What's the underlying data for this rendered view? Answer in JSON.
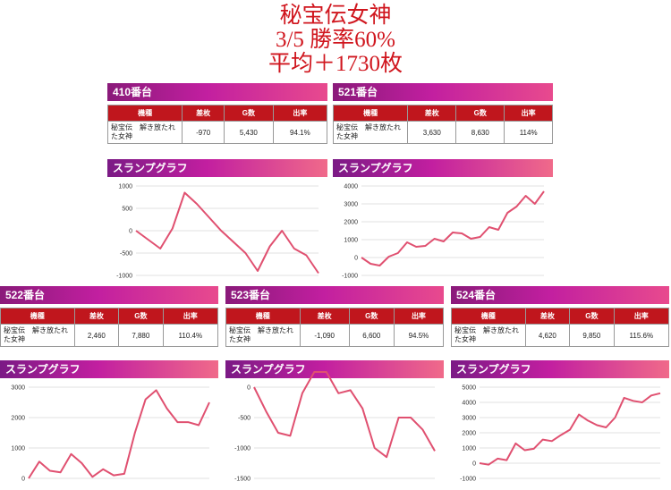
{
  "page": {
    "title_lines": [
      "秘宝伝女神",
      "3/5 勝率60%",
      "平均＋1730枚"
    ]
  },
  "table_headers": [
    "機種",
    "差枚",
    "G数",
    "出率"
  ],
  "graph_label": "スランプグラフ",
  "colors": {
    "header_red": "#c0161d",
    "line": "#e05070",
    "accent": "#d0161e"
  },
  "machines": [
    {
      "label": "410番台",
      "model": "秘宝伝　解き放たれた女神",
      "diff": "-970",
      "games": "5,430",
      "rate": "94.1%"
    },
    {
      "label": "521番台",
      "model": "秘宝伝　解き放たれた女神",
      "diff": "3,630",
      "games": "8,630",
      "rate": "114%"
    },
    {
      "label": "522番台",
      "model": "秘宝伝　解き放たれた女神",
      "diff": "2,460",
      "games": "7,880",
      "rate": "110.4%"
    },
    {
      "label": "523番台",
      "model": "秘宝伝　解き放たれた女神",
      "diff": "-1,090",
      "games": "6,600",
      "rate": "94.5%"
    },
    {
      "label": "524番台",
      "model": "秘宝伝　解き放たれた女神",
      "diff": "4,620",
      "games": "9,850",
      "rate": "115.6%"
    }
  ],
  "chart_data": [
    {
      "type": "line",
      "title": "スランプグラフ",
      "ylim": [
        -1000,
        1000
      ],
      "yticks": [
        1000,
        500,
        0,
        -500,
        -1000
      ],
      "y": [
        0,
        -200,
        -400,
        50,
        850,
        600,
        300,
        0,
        -250,
        -500,
        -900,
        -350,
        0,
        -400,
        -550,
        -950
      ]
    },
    {
      "type": "line",
      "title": "スランプグラフ",
      "ylim": [
        -1000,
        4000
      ],
      "yticks": [
        4000,
        3000,
        2000,
        1000,
        0,
        -1000
      ],
      "y": [
        0,
        -350,
        -450,
        50,
        250,
        850,
        600,
        650,
        1050,
        900,
        1400,
        1350,
        1050,
        1150,
        1700,
        1550,
        2500,
        2850,
        3450,
        3000,
        3700
      ]
    },
    {
      "type": "line",
      "title": "スランプグラフ",
      "ylim": [
        0,
        3000
      ],
      "yticks": [
        3000,
        2000,
        1000,
        0
      ],
      "y": [
        0,
        550,
        250,
        200,
        800,
        500,
        50,
        300,
        100,
        150,
        1500,
        2600,
        2900,
        2300,
        1850,
        1850,
        1750,
        2500
      ]
    },
    {
      "type": "line",
      "title": "スランプグラフ",
      "ylim": [
        -1500,
        0
      ],
      "yticks": [
        0,
        -500,
        -1000,
        -1500
      ],
      "y": [
        0,
        -400,
        -750,
        -800,
        -100,
        250,
        250,
        -100,
        -50,
        -350,
        -1000,
        -1150,
        -500,
        -500,
        -700,
        -1050
      ]
    },
    {
      "type": "line",
      "title": "スランプグラフ",
      "ylim": [
        -1000,
        5000
      ],
      "yticks": [
        5000,
        4000,
        3000,
        2000,
        1000,
        0,
        -1000
      ],
      "y": [
        0,
        -100,
        300,
        200,
        1300,
        850,
        950,
        1550,
        1450,
        1850,
        2200,
        3200,
        2800,
        2500,
        2350,
        3000,
        4300,
        4100,
        4000,
        4450,
        4600
      ]
    }
  ]
}
